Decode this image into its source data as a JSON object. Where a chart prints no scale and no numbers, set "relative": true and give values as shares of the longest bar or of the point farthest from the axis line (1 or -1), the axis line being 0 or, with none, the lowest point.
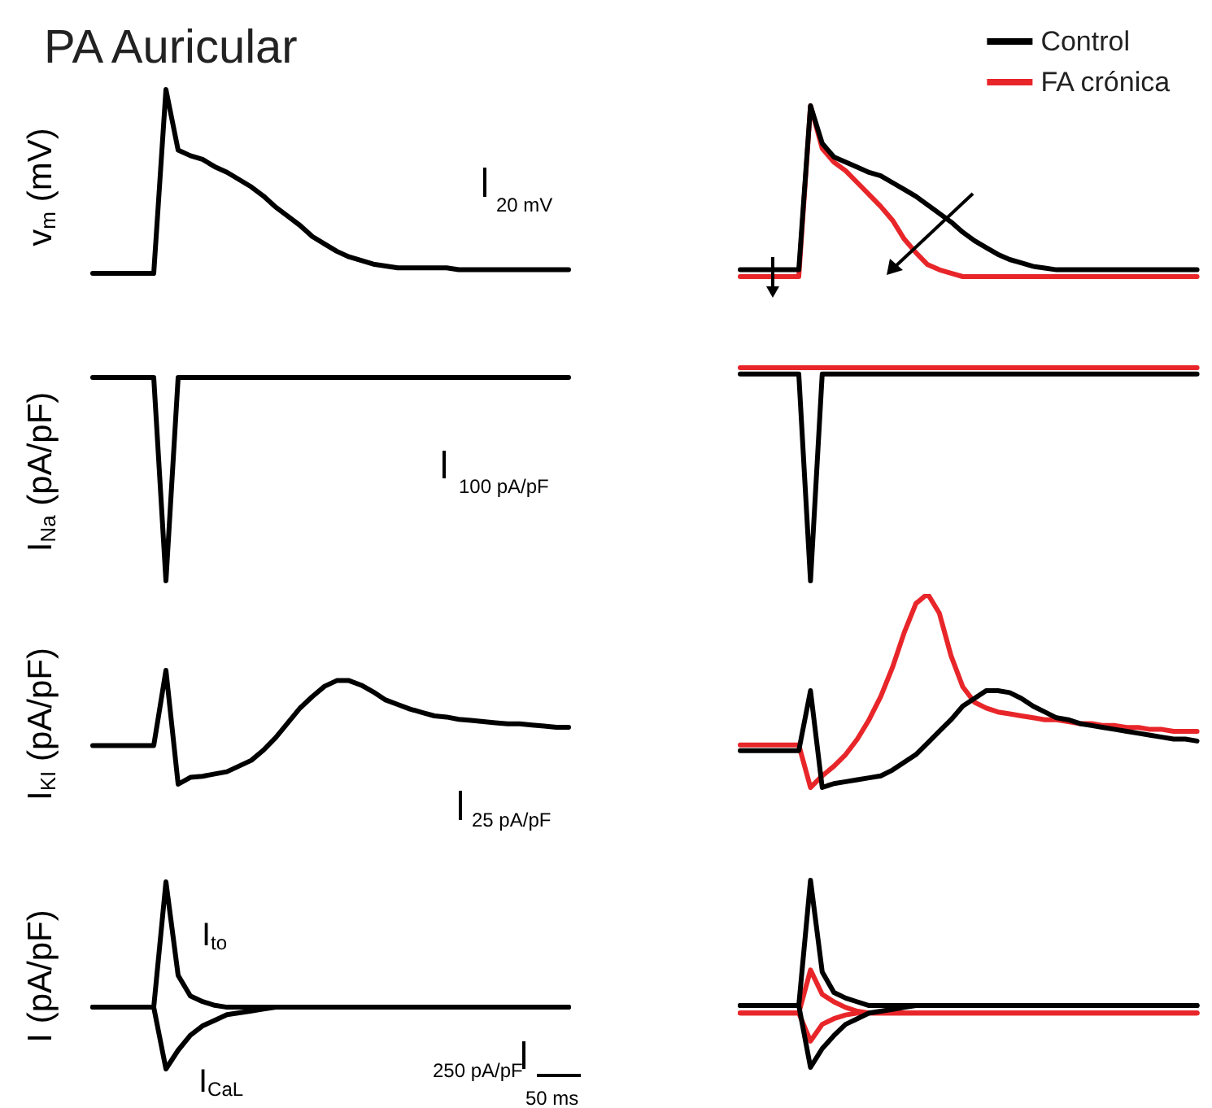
{
  "chart_data": [
    {
      "type": "line",
      "title": "PA Auricular",
      "ylabel": "v$_{m}$ (mV)",
      "relative": true,
      "annotations": [
        "20 mV"
      ],
      "categories": [
        null,
        null,
        null,
        null,
        null,
        null,
        null,
        null,
        null,
        null,
        null,
        null,
        null,
        null,
        null,
        null,
        null,
        null,
        null,
        null,
        null,
        null,
        null,
        null,
        null,
        null,
        null,
        null,
        null,
        null,
        null,
        null,
        null,
        null,
        null,
        null,
        null,
        null,
        null,
        null
      ],
      "series": [
        {
          "color": "#000000",
          "values": [
            0,
            0,
            0,
            0,
            0,
            0,
            1,
            0.67,
            0.64,
            0.62,
            0.58,
            0.55,
            0.51,
            0.47,
            0.42,
            0.36,
            0.31,
            0.26,
            0.2,
            0.16,
            0.12,
            0.09,
            0.07,
            0.05,
            0.04,
            0.03,
            0.03,
            0.03,
            0.03,
            0.03,
            0.02,
            0.02,
            0.02,
            0.02,
            0.02,
            0.02,
            0.02,
            0.02,
            0.02,
            0.02
          ]
        }
      ]
    },
    {
      "type": "line",
      "relative": true,
      "legend": "top right",
      "categories": [
        null,
        null,
        null,
        null,
        null,
        null,
        null,
        null,
        null,
        null,
        null,
        null,
        null,
        null,
        null,
        null,
        null,
        null,
        null,
        null,
        null,
        null,
        null,
        null,
        null,
        null,
        null,
        null,
        null,
        null,
        null,
        null,
        null,
        null,
        null,
        null,
        null,
        null,
        null,
        null
      ],
      "series": [
        {
          "name": "Control",
          "color": "#000000",
          "values": [
            0.04,
            0.04,
            0.04,
            0.04,
            0.04,
            0.04,
            1,
            0.78,
            0.7,
            0.67,
            0.64,
            0.61,
            0.59,
            0.55,
            0.51,
            0.47,
            0.42,
            0.37,
            0.32,
            0.26,
            0.21,
            0.17,
            0.13,
            0.1,
            0.08,
            0.06,
            0.05,
            0.04,
            0.04,
            0.04,
            0.04,
            0.04,
            0.04,
            0.04,
            0.04,
            0.04,
            0.04,
            0.04,
            0.04,
            0.04
          ]
        },
        {
          "name": "FA crónica",
          "color": "#e8262a",
          "values": [
            0,
            0,
            0,
            0,
            0,
            0,
            1,
            0.75,
            0.67,
            0.62,
            0.55,
            0.48,
            0.41,
            0.33,
            0.22,
            0.14,
            0.07,
            0.04,
            0.02,
            0,
            0,
            0,
            0,
            0,
            0,
            0,
            0,
            0,
            0,
            0,
            0,
            0,
            0,
            0,
            0,
            0,
            0,
            0,
            0,
            0
          ]
        }
      ]
    },
    {
      "type": "line",
      "ylabel": "I$_{Na}$ (pA/pF)",
      "relative": true,
      "annotations": [
        "100 pA/pF"
      ],
      "categories": [
        null,
        null,
        null,
        null,
        null,
        null,
        null,
        null,
        null,
        null,
        null,
        null,
        null,
        null,
        null,
        null,
        null,
        null,
        null,
        null,
        null,
        null,
        null,
        null,
        null,
        null,
        null,
        null,
        null,
        null,
        null,
        null,
        null,
        null,
        null,
        null,
        null,
        null,
        null,
        null
      ],
      "series": [
        {
          "color": "#000000",
          "values": [
            1,
            1,
            1,
            1,
            1,
            1,
            0,
            1,
            1,
            1,
            1,
            1,
            1,
            1,
            1,
            1,
            1,
            1,
            1,
            1,
            1,
            1,
            1,
            1,
            1,
            1,
            1,
            1,
            1,
            1,
            1,
            1,
            1,
            1,
            1,
            1,
            1,
            1,
            1,
            1
          ]
        }
      ]
    },
    {
      "type": "line",
      "relative": true,
      "categories": [
        null,
        null,
        null,
        null,
        null,
        null,
        null,
        null,
        null,
        null,
        null,
        null,
        null,
        null,
        null,
        null,
        null,
        null,
        null,
        null,
        null,
        null,
        null,
        null,
        null,
        null,
        null,
        null,
        null,
        null,
        null,
        null,
        null,
        null,
        null,
        null,
        null,
        null,
        null,
        null
      ],
      "series": [
        {
          "color": "#000000",
          "values": [
            0.97,
            0.97,
            0.97,
            0.97,
            0.97,
            0.97,
            0,
            0.97,
            0.97,
            0.97,
            0.97,
            0.97,
            0.97,
            0.97,
            0.97,
            0.97,
            0.97,
            0.97,
            0.97,
            0.97,
            0.97,
            0.97,
            0.97,
            0.97,
            0.97,
            0.97,
            0.97,
            0.97,
            0.97,
            0.97,
            0.97,
            0.97,
            0.97,
            0.97,
            0.97,
            0.97,
            0.97,
            0.97,
            0.97,
            0.97
          ]
        },
        {
          "color": "#e8262a",
          "values": [
            1,
            1,
            1,
            1,
            1,
            1,
            1,
            1,
            1,
            1,
            1,
            1,
            1,
            1,
            1,
            1,
            1,
            1,
            1,
            1,
            1,
            1,
            1,
            1,
            1,
            1,
            1,
            1,
            1,
            1,
            1,
            1,
            1,
            1,
            1,
            1,
            1,
            1,
            1,
            1
          ]
        }
      ]
    },
    {
      "type": "line",
      "ylabel": "I$_{KI}$ (pA/pF)",
      "relative": true,
      "annotations": [
        "25 pA/pF"
      ],
      "categories": [
        null,
        null,
        null,
        null,
        null,
        null,
        null,
        null,
        null,
        null,
        null,
        null,
        null,
        null,
        null,
        null,
        null,
        null,
        null,
        null,
        null,
        null,
        null,
        null,
        null,
        null,
        null,
        null,
        null,
        null,
        null,
        null,
        null,
        null,
        null,
        null,
        null,
        null,
        null,
        null
      ],
      "series": [
        {
          "color": "#000000",
          "values": [
            0.34,
            0.34,
            0.34,
            0.34,
            0.34,
            0.34,
            1,
            0,
            0.06,
            0.07,
            0.09,
            0.11,
            0.16,
            0.21,
            0.3,
            0.41,
            0.54,
            0.67,
            0.77,
            0.86,
            0.91,
            0.91,
            0.87,
            0.81,
            0.74,
            0.7,
            0.66,
            0.63,
            0.6,
            0.59,
            0.57,
            0.56,
            0.55,
            0.54,
            0.53,
            0.53,
            0.52,
            0.51,
            0.5,
            0.5
          ]
        }
      ]
    },
    {
      "type": "line",
      "relative": true,
      "categories": [
        null,
        null,
        null,
        null,
        null,
        null,
        null,
        null,
        null,
        null,
        null,
        null,
        null,
        null,
        null,
        null,
        null,
        null,
        null,
        null,
        null,
        null,
        null,
        null,
        null,
        null,
        null,
        null,
        null,
        null,
        null,
        null,
        null,
        null,
        null,
        null,
        null,
        null,
        null,
        null
      ],
      "series": [
        {
          "color": "#000000",
          "values": [
            0.19,
            0.19,
            0.19,
            0.19,
            0.19,
            0.19,
            0.5,
            0,
            0.02,
            0.03,
            0.04,
            0.05,
            0.06,
            0.09,
            0.13,
            0.17,
            0.23,
            0.29,
            0.35,
            0.42,
            0.46,
            0.5,
            0.5,
            0.49,
            0.46,
            0.42,
            0.39,
            0.36,
            0.35,
            0.33,
            0.32,
            0.31,
            0.3,
            0.29,
            0.28,
            0.27,
            0.26,
            0.25,
            0.25,
            0.24
          ]
        },
        {
          "color": "#e8262a",
          "values": [
            0.22,
            0.22,
            0.22,
            0.22,
            0.22,
            0.22,
            0,
            0.06,
            0.11,
            0.17,
            0.25,
            0.35,
            0.47,
            0.62,
            0.8,
            0.95,
            1,
            0.9,
            0.68,
            0.52,
            0.44,
            0.41,
            0.39,
            0.38,
            0.37,
            0.36,
            0.35,
            0.35,
            0.34,
            0.33,
            0.33,
            0.32,
            0.32,
            0.31,
            0.31,
            0.3,
            0.3,
            0.29,
            0.29,
            0.29
          ]
        }
      ]
    },
    {
      "type": "line",
      "ylabel": "I (pA/pF)",
      "relative": true,
      "annotations": [
        "250 pA/pF",
        "50 ms"
      ],
      "categories": [
        null,
        null,
        null,
        null,
        null,
        null,
        null,
        null,
        null,
        null,
        null,
        null,
        null,
        null,
        null,
        null,
        null,
        null,
        null,
        null,
        null,
        null,
        null,
        null,
        null,
        null,
        null,
        null,
        null,
        null,
        null,
        null,
        null,
        null,
        null,
        null,
        null,
        null,
        null,
        null
      ],
      "series": [
        {
          "name": "I$_{to}$",
          "color": "#000000",
          "values": [
            0.33,
            0.33,
            0.33,
            0.33,
            0.33,
            0.33,
            1,
            0.5,
            0.39,
            0.36,
            0.34,
            0.33,
            0.33,
            0.33,
            0.33,
            0.33,
            0.33,
            0.33,
            0.33,
            0.33,
            0.33,
            0.33,
            0.33,
            0.33,
            0.33,
            0.33,
            0.33,
            0.33,
            0.33,
            0.33,
            0.33,
            0.33,
            0.33,
            0.33,
            0.33,
            0.33,
            0.33,
            0.33,
            0.33,
            0.33
          ]
        },
        {
          "name": "I$_{CaL}$",
          "color": "#000000",
          "values": [
            0.33,
            0.33,
            0.33,
            0.33,
            0.33,
            0.33,
            0,
            0.1,
            0.18,
            0.23,
            0.26,
            0.29,
            0.3,
            0.31,
            0.32,
            0.33,
            0.33,
            0.33,
            0.33,
            0.33,
            0.33,
            0.33,
            0.33,
            0.33,
            0.33,
            0.33,
            0.33,
            0.33,
            0.33,
            0.33,
            0.33,
            0.33,
            0.33,
            0.33,
            0.33,
            0.33,
            0.33,
            0.33,
            0.33,
            0.33
          ]
        }
      ]
    },
    {
      "type": "line",
      "relative": true,
      "categories": [
        null,
        null,
        null,
        null,
        null,
        null,
        null,
        null,
        null,
        null,
        null,
        null,
        null,
        null,
        null,
        null,
        null,
        null,
        null,
        null,
        null,
        null,
        null,
        null,
        null,
        null,
        null,
        null,
        null,
        null,
        null,
        null,
        null,
        null,
        null,
        null,
        null,
        null,
        null,
        null
      ],
      "series": [
        {
          "color": "#000000",
          "values": [
            0.33,
            0.33,
            0.33,
            0.33,
            0.33,
            0.33,
            1,
            0.51,
            0.4,
            0.37,
            0.35,
            0.33,
            0.33,
            0.33,
            0.33,
            0.33,
            0.33,
            0.33,
            0.33,
            0.33,
            0.33,
            0.33,
            0.33,
            0.33,
            0.33,
            0.33,
            0.33,
            0.33,
            0.33,
            0.33,
            0.33,
            0.33,
            0.33,
            0.33,
            0.33,
            0.33,
            0.33,
            0.33,
            0.33,
            0.33
          ]
        },
        {
          "color": "#000000",
          "values": [
            0.33,
            0.33,
            0.33,
            0.33,
            0.33,
            0.33,
            0,
            0.1,
            0.17,
            0.23,
            0.26,
            0.29,
            0.3,
            0.31,
            0.32,
            0.33,
            0.33,
            0.33,
            0.33,
            0.33,
            0.33,
            0.33,
            0.33,
            0.33,
            0.33,
            0.33,
            0.33,
            0.33,
            0.33,
            0.33,
            0.33,
            0.33,
            0.33,
            0.33,
            0.33,
            0.33,
            0.33,
            0.33,
            0.33,
            0.33
          ]
        },
        {
          "color": "#e8262a",
          "values": [
            0.29,
            0.29,
            0.29,
            0.29,
            0.29,
            0.29,
            0.52,
            0.39,
            0.35,
            0.32,
            0.3,
            0.29,
            0.29,
            0.29,
            0.29,
            0.29,
            0.29,
            0.29,
            0.29,
            0.29,
            0.29,
            0.29,
            0.29,
            0.29,
            0.29,
            0.29,
            0.29,
            0.29,
            0.29,
            0.29,
            0.29,
            0.29,
            0.29,
            0.29,
            0.29,
            0.29,
            0.29,
            0.29,
            0.29,
            0.29
          ]
        },
        {
          "color": "#e8262a",
          "values": [
            0.29,
            0.29,
            0.29,
            0.29,
            0.29,
            0.29,
            0.14,
            0.23,
            0.26,
            0.28,
            0.29,
            0.29,
            0.29,
            0.29,
            0.29,
            0.29,
            0.29,
            0.29,
            0.29,
            0.29,
            0.29,
            0.29,
            0.29,
            0.29,
            0.29,
            0.29,
            0.29,
            0.29,
            0.29,
            0.29,
            0.29,
            0.29,
            0.29,
            0.29,
            0.29,
            0.29,
            0.29,
            0.29,
            0.29,
            0.29
          ]
        }
      ]
    }
  ]
}
